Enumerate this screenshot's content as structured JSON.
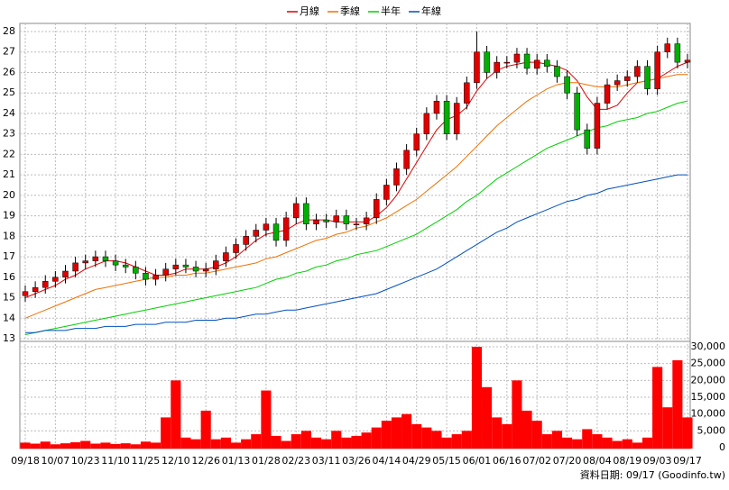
{
  "chart_data": {
    "type": "candlestick",
    "footer": "資料日期: 09/17 (Goodinfo.tw)",
    "categories": [
      "09/18",
      null,
      null,
      "10/07",
      null,
      null,
      "10/23",
      null,
      null,
      "11/10",
      null,
      null,
      "11/25",
      null,
      null,
      "12/10",
      null,
      null,
      "12/26",
      null,
      null,
      "01/13",
      null,
      null,
      "01/28",
      null,
      null,
      "02/23",
      null,
      null,
      "03/11",
      null,
      null,
      "03/26",
      null,
      null,
      "04/14",
      null,
      null,
      "04/29",
      null,
      null,
      "05/15",
      null,
      null,
      "06/01",
      null,
      null,
      "06/16",
      null,
      null,
      "07/02",
      null,
      null,
      "07/20",
      null,
      null,
      "08/04",
      null,
      null,
      "08/19",
      null,
      null,
      "09/03",
      null,
      null,
      "09/17"
    ],
    "open": [
      15.1,
      15.3,
      15.5,
      15.8,
      16.0,
      16.3,
      16.7,
      16.8,
      17.0,
      16.8,
      16.6,
      16.5,
      16.2,
      15.9,
      16.1,
      16.4,
      16.6,
      16.5,
      16.3,
      16.4,
      16.8,
      17.2,
      17.6,
      18.0,
      18.3,
      18.6,
      17.8,
      18.9,
      19.6,
      18.6,
      18.8,
      18.7,
      19.0,
      18.6,
      18.6,
      18.9,
      19.8,
      20.5,
      21.3,
      22.2,
      23.0,
      24.0,
      24.6,
      23.0,
      24.5,
      25.5,
      27.0,
      26.0,
      26.5,
      26.5,
      26.9,
      26.2,
      26.6,
      26.3,
      25.8,
      25.0,
      23.2,
      22.3,
      24.5,
      25.4,
      25.6,
      25.8,
      26.3,
      25.2,
      27.0,
      27.4,
      26.5
    ],
    "high": [
      15.6,
      15.8,
      16.1,
      16.3,
      16.6,
      17.0,
      17.1,
      17.3,
      17.3,
      17.1,
      16.9,
      16.8,
      16.5,
      16.4,
      16.7,
      16.9,
      16.9,
      16.8,
      16.7,
      17.1,
      17.5,
      17.9,
      18.3,
      18.6,
      18.9,
      18.9,
      19.2,
      19.9,
      19.9,
      19.1,
      19.1,
      19.3,
      19.3,
      18.9,
      19.2,
      20.1,
      20.8,
      21.6,
      22.5,
      23.3,
      24.3,
      24.9,
      24.9,
      24.8,
      25.8,
      28.0,
      27.3,
      26.8,
      26.8,
      27.2,
      27.2,
      26.9,
      26.9,
      26.6,
      26.1,
      25.3,
      23.5,
      24.8,
      25.7,
      25.9,
      26.1,
      26.6,
      26.6,
      27.3,
      27.7,
      27.7,
      26.9
    ],
    "low": [
      14.8,
      15.0,
      15.2,
      15.5,
      15.7,
      16.0,
      16.4,
      16.5,
      16.5,
      16.3,
      16.2,
      15.9,
      15.6,
      15.6,
      15.8,
      16.1,
      16.2,
      16.0,
      16.0,
      16.1,
      16.5,
      16.9,
      17.3,
      17.7,
      18.0,
      17.5,
      17.5,
      18.6,
      18.3,
      18.3,
      18.4,
      18.4,
      18.3,
      18.3,
      18.3,
      18.6,
      19.5,
      20.2,
      21.0,
      21.9,
      22.7,
      23.7,
      22.7,
      22.7,
      24.2,
      25.2,
      25.7,
      25.7,
      26.2,
      26.2,
      25.9,
      25.9,
      26.0,
      25.5,
      24.7,
      22.9,
      22.0,
      22.0,
      24.2,
      25.1,
      25.3,
      25.5,
      24.9,
      24.9,
      26.7,
      26.2,
      26.2
    ],
    "close": [
      15.3,
      15.5,
      15.8,
      16.0,
      16.3,
      16.7,
      16.8,
      17.0,
      16.8,
      16.6,
      16.5,
      16.2,
      15.9,
      16.1,
      16.4,
      16.6,
      16.5,
      16.3,
      16.4,
      16.8,
      17.2,
      17.6,
      18.0,
      18.3,
      18.6,
      17.8,
      18.9,
      19.6,
      18.6,
      18.8,
      18.7,
      19.0,
      18.6,
      18.6,
      18.9,
      19.8,
      20.5,
      21.3,
      22.2,
      23.0,
      24.0,
      24.6,
      23.0,
      24.5,
      25.5,
      27.0,
      26.0,
      26.5,
      26.5,
      26.9,
      26.2,
      26.6,
      26.3,
      25.8,
      25.0,
      23.2,
      22.3,
      24.5,
      25.4,
      25.6,
      25.8,
      26.3,
      25.2,
      27.0,
      27.4,
      26.5,
      26.6
    ],
    "up_color": "#e00000",
    "down_color": "#00b000",
    "series": [
      {
        "name": "月線",
        "color": "#e00000",
        "values": [
          15.0,
          15.2,
          15.4,
          15.6,
          15.9,
          16.1,
          16.4,
          16.6,
          16.8,
          16.8,
          16.7,
          16.5,
          16.3,
          16.1,
          16.1,
          16.2,
          16.4,
          16.4,
          16.4,
          16.5,
          16.7,
          17.0,
          17.4,
          17.8,
          18.1,
          18.2,
          18.3,
          18.6,
          18.8,
          18.8,
          18.8,
          18.7,
          18.7,
          18.7,
          18.7,
          19.0,
          19.4,
          20.0,
          20.8,
          21.6,
          22.4,
          23.2,
          23.7,
          23.9,
          24.3,
          25.1,
          25.7,
          26.1,
          26.3,
          26.4,
          26.5,
          26.5,
          26.4,
          26.3,
          26.1,
          25.6,
          24.8,
          24.2,
          24.2,
          24.4,
          25.0,
          25.5,
          25.6,
          25.7,
          26.0,
          26.3,
          26.5
        ]
      },
      {
        "name": "季線",
        "color": "#f07000",
        "values": [
          14.0,
          14.2,
          14.4,
          14.6,
          14.8,
          15.0,
          15.2,
          15.4,
          15.5,
          15.6,
          15.7,
          15.8,
          15.9,
          16.0,
          16.0,
          16.1,
          16.1,
          16.2,
          16.2,
          16.3,
          16.4,
          16.5,
          16.6,
          16.7,
          16.9,
          17.0,
          17.2,
          17.4,
          17.6,
          17.8,
          17.9,
          18.1,
          18.2,
          18.4,
          18.5,
          18.7,
          18.9,
          19.2,
          19.5,
          19.8,
          20.2,
          20.6,
          21.0,
          21.4,
          21.9,
          22.4,
          22.9,
          23.4,
          23.8,
          24.2,
          24.6,
          24.9,
          25.2,
          25.4,
          25.5,
          25.5,
          25.4,
          25.3,
          25.3,
          25.3,
          25.4,
          25.5,
          25.6,
          25.7,
          25.8,
          25.9,
          25.9
        ]
      },
      {
        "name": "半年",
        "color": "#00d000",
        "values": [
          13.2,
          13.3,
          13.4,
          13.5,
          13.6,
          13.7,
          13.8,
          13.9,
          14.0,
          14.1,
          14.2,
          14.3,
          14.4,
          14.5,
          14.6,
          14.7,
          14.8,
          14.9,
          15.0,
          15.1,
          15.2,
          15.3,
          15.4,
          15.5,
          15.7,
          15.9,
          16.0,
          16.2,
          16.3,
          16.5,
          16.6,
          16.8,
          16.9,
          17.1,
          17.2,
          17.3,
          17.5,
          17.7,
          17.9,
          18.1,
          18.4,
          18.7,
          19.0,
          19.3,
          19.7,
          20.0,
          20.4,
          20.8,
          21.1,
          21.4,
          21.7,
          22.0,
          22.3,
          22.5,
          22.7,
          22.9,
          23.1,
          23.3,
          23.4,
          23.6,
          23.7,
          23.8,
          24.0,
          24.1,
          24.3,
          24.5,
          24.6
        ]
      },
      {
        "name": "年線",
        "color": "#0050c0",
        "values": [
          13.3,
          13.3,
          13.4,
          13.4,
          13.4,
          13.5,
          13.5,
          13.5,
          13.6,
          13.6,
          13.6,
          13.7,
          13.7,
          13.7,
          13.8,
          13.8,
          13.8,
          13.9,
          13.9,
          13.9,
          14.0,
          14.0,
          14.1,
          14.2,
          14.2,
          14.3,
          14.4,
          14.4,
          14.5,
          14.6,
          14.7,
          14.8,
          14.9,
          15.0,
          15.1,
          15.2,
          15.4,
          15.6,
          15.8,
          16.0,
          16.2,
          16.4,
          16.7,
          17.0,
          17.3,
          17.6,
          17.9,
          18.2,
          18.4,
          18.7,
          18.9,
          19.1,
          19.3,
          19.5,
          19.7,
          19.8,
          20.0,
          20.1,
          20.3,
          20.4,
          20.5,
          20.6,
          20.7,
          20.8,
          20.9,
          21.0,
          21.0
        ]
      }
    ],
    "ylim": [
      13,
      28
    ],
    "yticks": [
      13,
      14,
      15,
      16,
      17,
      18,
      19,
      20,
      21,
      22,
      23,
      24,
      25,
      26,
      27,
      28
    ],
    "volume": {
      "color": "#ff0000",
      "values": [
        1500,
        1200,
        1800,
        1000,
        1300,
        1600,
        2000,
        1200,
        1500,
        1100,
        1300,
        1000,
        1800,
        1500,
        9000,
        20000,
        3000,
        2500,
        11000,
        2500,
        3000,
        1500,
        2500,
        4000,
        17000,
        3500,
        2000,
        4000,
        5000,
        3000,
        2500,
        5000,
        3000,
        3500,
        4500,
        6000,
        8000,
        9000,
        10000,
        7000,
        6000,
        5000,
        3000,
        4000,
        5000,
        30000,
        18000,
        9000,
        7000,
        20000,
        11000,
        8000,
        4000,
        5000,
        3000,
        2500,
        5500,
        4000,
        3000,
        2000,
        2500,
        1500,
        3000,
        24000,
        12000,
        26000,
        9000
      ],
      "ylim": [
        0,
        30000
      ],
      "yticks": [
        0,
        {
          "value": 5000,
          "label": "5,000"
        },
        {
          "value": 10000,
          "label": "10,000"
        },
        {
          "value": 15000,
          "label": "15,000"
        },
        {
          "value": 20000,
          "label": "20,000"
        },
        {
          "value": 25000,
          "label": "25,000"
        },
        {
          "value": 30000,
          "label": "30,000"
        }
      ]
    },
    "grid": true
  }
}
